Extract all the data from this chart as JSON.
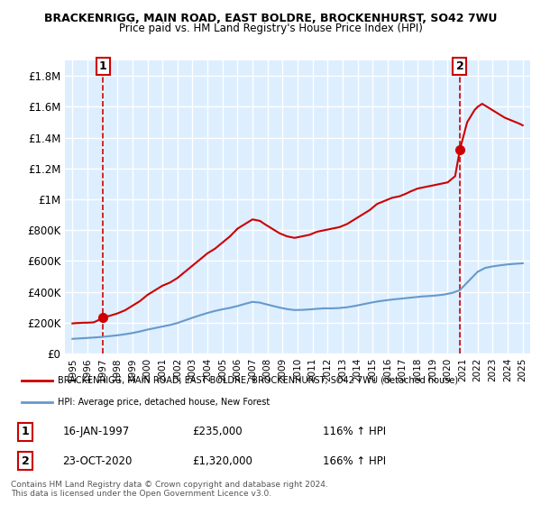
{
  "title_line1": "BRACKENRIGG, MAIN ROAD, EAST BOLDRE, BROCKENHURST, SO42 7WU",
  "title_line2": "Price paid vs. HM Land Registry's House Price Index (HPI)",
  "xlabel": "",
  "ylabel": "",
  "ylim": [
    0,
    1900000
  ],
  "yticks": [
    0,
    200000,
    400000,
    600000,
    800000,
    1000000,
    1200000,
    1400000,
    1600000,
    1800000
  ],
  "ytick_labels": [
    "£0",
    "£200K",
    "£400K",
    "£600K",
    "£800K",
    "£1M",
    "£1.2M",
    "£1.4M",
    "£1.6M",
    "£1.8M"
  ],
  "xlim_start": 1994.5,
  "xlim_end": 2025.5,
  "xticks": [
    1995,
    1996,
    1997,
    1998,
    1999,
    2000,
    2001,
    2002,
    2003,
    2004,
    2005,
    2006,
    2007,
    2008,
    2009,
    2010,
    2011,
    2012,
    2013,
    2014,
    2015,
    2016,
    2017,
    2018,
    2019,
    2020,
    2021,
    2022,
    2023,
    2024,
    2025
  ],
  "red_line_color": "#cc0000",
  "blue_line_color": "#6699cc",
  "marker_color": "#cc0000",
  "dashed_line_color": "#cc0000",
  "annotation_box_color": "#cc0000",
  "background_color": "#ddeeff",
  "grid_color": "#ffffff",
  "point1_x": 1997.04,
  "point1_y": 235000,
  "point1_label": "1",
  "point2_x": 2020.81,
  "point2_y": 1320000,
  "point2_label": "2",
  "legend_entry1": "BRACKENRIGG, MAIN ROAD, EAST BOLDRE, BROCKENHURST, SO42 7WU (detached house)",
  "legend_entry2": "HPI: Average price, detached house, New Forest",
  "table_row1": [
    "1",
    "16-JAN-1997",
    "£235,000",
    "116% ↑ HPI"
  ],
  "table_row2": [
    "2",
    "23-OCT-2020",
    "£1,320,000",
    "166% ↑ HPI"
  ],
  "footer_line1": "Contains HM Land Registry data © Crown copyright and database right 2024.",
  "footer_line2": "This data is licensed under the Open Government Licence v3.0.",
  "red_x": [
    1995.0,
    1995.2,
    1995.4,
    1995.6,
    1995.8,
    1996.0,
    1996.2,
    1996.4,
    1996.6,
    1996.8,
    1997.04,
    1997.5,
    1998.0,
    1998.5,
    1999.0,
    1999.5,
    2000.0,
    2000.5,
    2001.0,
    2001.5,
    2002.0,
    2002.5,
    2003.0,
    2003.5,
    2004.0,
    2004.5,
    2005.0,
    2005.5,
    2006.0,
    2006.5,
    2007.0,
    2007.5,
    2007.8,
    2008.3,
    2008.8,
    2009.3,
    2009.8,
    2010.3,
    2010.8,
    2011.3,
    2011.8,
    2012.3,
    2012.8,
    2013.3,
    2013.8,
    2014.3,
    2014.8,
    2015.3,
    2015.8,
    2016.3,
    2016.8,
    2017.3,
    2017.5,
    2018.0,
    2018.5,
    2019.0,
    2019.5,
    2020.0,
    2020.5,
    2020.81,
    2021.3,
    2021.8,
    2022.0,
    2022.3,
    2022.8,
    2023.3,
    2023.8,
    2024.3,
    2024.8,
    2025.0
  ],
  "red_y": [
    195000,
    197000,
    198000,
    199000,
    200000,
    200000,
    201000,
    202000,
    210000,
    220000,
    235000,
    245000,
    260000,
    280000,
    310000,
    340000,
    380000,
    410000,
    440000,
    460000,
    490000,
    530000,
    570000,
    610000,
    650000,
    680000,
    720000,
    760000,
    810000,
    840000,
    870000,
    860000,
    840000,
    810000,
    780000,
    760000,
    750000,
    760000,
    770000,
    790000,
    800000,
    810000,
    820000,
    840000,
    870000,
    900000,
    930000,
    970000,
    990000,
    1010000,
    1020000,
    1040000,
    1050000,
    1070000,
    1080000,
    1090000,
    1100000,
    1110000,
    1150000,
    1320000,
    1500000,
    1580000,
    1600000,
    1620000,
    1590000,
    1560000,
    1530000,
    1510000,
    1490000,
    1480000
  ],
  "blue_x": [
    1995.0,
    1995.5,
    1996.0,
    1996.5,
    1997.0,
    1997.5,
    1998.0,
    1998.5,
    1999.0,
    1999.5,
    2000.0,
    2000.5,
    2001.0,
    2001.5,
    2002.0,
    2002.5,
    2003.0,
    2003.5,
    2004.0,
    2004.5,
    2005.0,
    2005.5,
    2006.0,
    2006.5,
    2007.0,
    2007.5,
    2007.8,
    2008.3,
    2008.8,
    2009.3,
    2009.8,
    2010.3,
    2010.8,
    2011.3,
    2011.8,
    2012.3,
    2012.8,
    2013.3,
    2013.8,
    2014.3,
    2014.8,
    2015.3,
    2015.8,
    2016.3,
    2016.8,
    2017.3,
    2017.8,
    2018.3,
    2018.8,
    2019.3,
    2019.8,
    2020.3,
    2020.8,
    2021.3,
    2021.8,
    2022.0,
    2022.5,
    2023.0,
    2023.5,
    2024.0,
    2024.5,
    2025.0
  ],
  "blue_y": [
    95000,
    98000,
    101000,
    104000,
    108000,
    113000,
    118000,
    125000,
    133000,
    143000,
    155000,
    165000,
    175000,
    185000,
    198000,
    215000,
    232000,
    248000,
    263000,
    276000,
    287000,
    296000,
    308000,
    322000,
    335000,
    330000,
    322000,
    310000,
    298000,
    288000,
    282000,
    283000,
    286000,
    290000,
    293000,
    293000,
    295000,
    300000,
    308000,
    318000,
    328000,
    337000,
    344000,
    350000,
    355000,
    360000,
    365000,
    370000,
    373000,
    377000,
    383000,
    393000,
    410000,
    460000,
    510000,
    530000,
    555000,
    565000,
    572000,
    578000,
    582000,
    585000
  ]
}
